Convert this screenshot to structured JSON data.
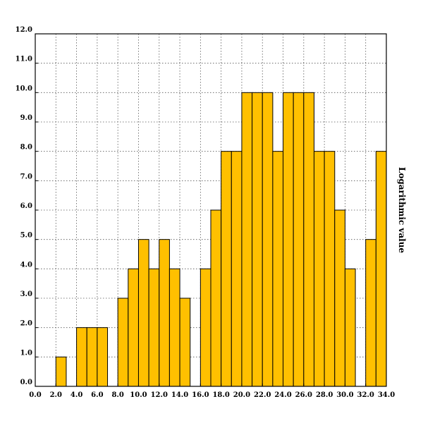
{
  "chart_data": {
    "type": "bar",
    "title": "",
    "xlabel": "",
    "ylabel": "Logarithmic value",
    "ylabel_position": "right",
    "xlim": [
      0,
      34
    ],
    "ylim": [
      0,
      12
    ],
    "x_ticks": [
      0,
      2,
      4,
      6,
      8,
      10,
      12,
      14,
      16,
      18,
      20,
      22,
      24,
      26,
      28,
      30,
      32,
      34
    ],
    "y_ticks": [
      0,
      1,
      2,
      3,
      4,
      5,
      6,
      7,
      8,
      9,
      10,
      11,
      12
    ],
    "tick_format": "one-decimal",
    "grid": true,
    "bar_color": "#FFC000",
    "bar_width": 1,
    "x": [
      2,
      3,
      4,
      5,
      6,
      7,
      8,
      9,
      10,
      11,
      12,
      13,
      14,
      15,
      16,
      17,
      18,
      19,
      20,
      21,
      22,
      23,
      24,
      25,
      26,
      27,
      28,
      29,
      30,
      31,
      32,
      33
    ],
    "values": [
      1,
      0,
      2,
      2,
      2,
      0,
      3,
      4,
      5,
      4,
      5,
      4,
      3,
      0,
      4,
      6,
      8,
      8,
      10,
      10,
      10,
      8,
      10,
      10,
      10,
      8,
      8,
      6,
      4,
      0,
      5,
      8
    ]
  }
}
